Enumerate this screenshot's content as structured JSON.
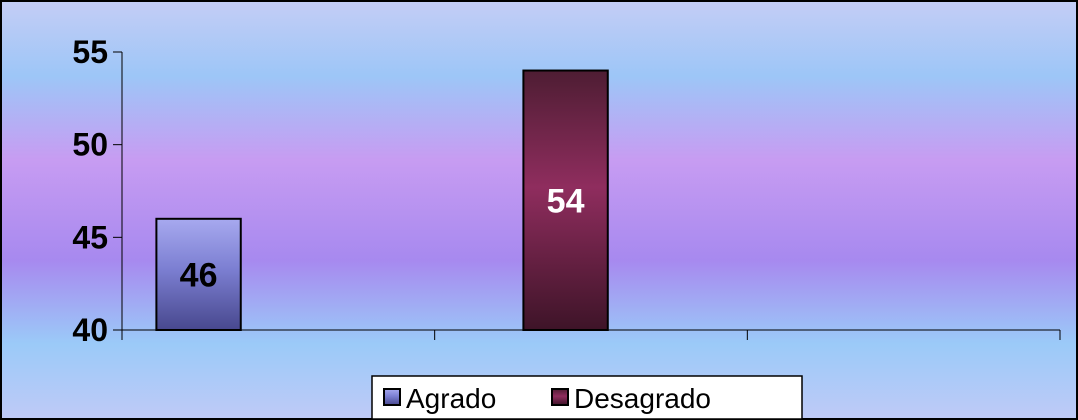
{
  "chart_data": {
    "type": "bar",
    "title": "",
    "xlabel": "",
    "ylabel": "",
    "ylim": [
      40,
      55
    ],
    "yticks": [
      "55",
      "50",
      "45",
      "40"
    ],
    "series": [
      {
        "name": "Agrado",
        "value": 46,
        "label": "46",
        "slot": 0,
        "color": "#6f6fc8",
        "label_color": "#000000"
      },
      {
        "name": "Desagrado",
        "value": 54,
        "label": "54",
        "slot": 1,
        "color": "#8a2a58",
        "label_color": "#ffffff"
      }
    ],
    "legend": {
      "position": "bottom",
      "items": [
        "Agrado",
        "Desagrado"
      ]
    },
    "grid": false
  }
}
